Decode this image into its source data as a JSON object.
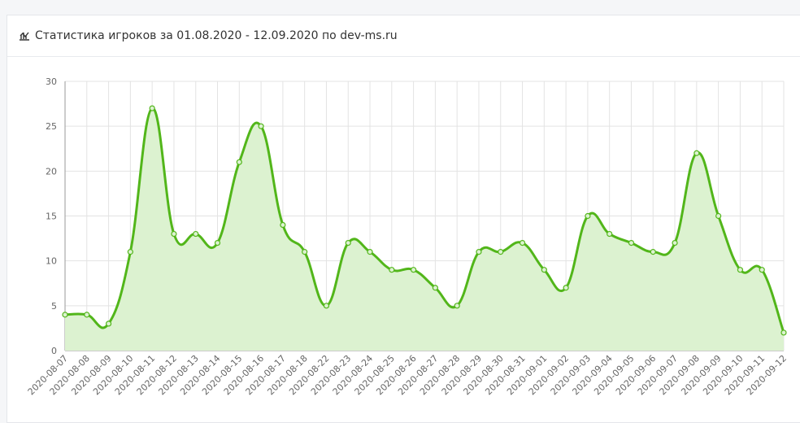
{
  "chart_data": {
    "type": "line",
    "title": "Статистика игроков за 01.08.2020 - 12.09.2020 по dev-ms.ru",
    "categories": [
      "2020-08-07",
      "2020-08-08",
      "2020-08-09",
      "2020-08-10",
      "2020-08-11",
      "2020-08-12",
      "2020-08-13",
      "2020-08-14",
      "2020-08-15",
      "2020-08-16",
      "2020-08-17",
      "2020-08-18",
      "2020-08-22",
      "2020-08-23",
      "2020-08-24",
      "2020-08-25",
      "2020-08-26",
      "2020-08-27",
      "2020-08-28",
      "2020-08-29",
      "2020-08-30",
      "2020-08-31",
      "2020-09-01",
      "2020-09-02",
      "2020-09-03",
      "2020-09-04",
      "2020-09-05",
      "2020-09-06",
      "2020-09-07",
      "2020-09-08",
      "2020-09-09",
      "2020-09-10",
      "2020-09-11",
      "2020-09-12"
    ],
    "values": [
      4,
      4,
      3,
      11,
      27,
      13,
      13,
      12,
      21,
      25,
      14,
      11,
      5,
      12,
      11,
      9,
      9,
      7,
      5,
      11,
      11,
      12,
      9,
      7,
      15,
      13,
      12,
      11,
      12,
      22,
      15,
      9,
      9,
      2
    ],
    "color": "#52b61a",
    "fill": "#dcf2d0",
    "ylim": [
      0,
      30
    ],
    "yticks": [
      0,
      5,
      10,
      15,
      20,
      25,
      30
    ],
    "grid": true
  }
}
